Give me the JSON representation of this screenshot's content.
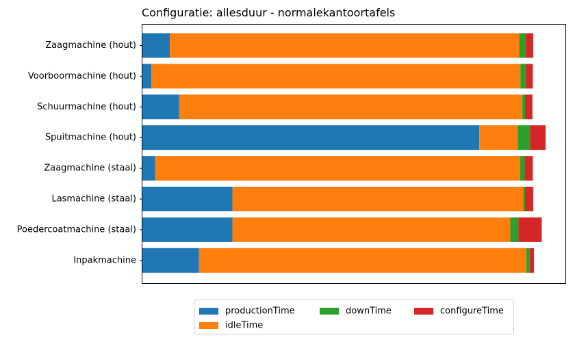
{
  "chart_data": {
    "type": "bar",
    "orientation": "horizontal",
    "stacked": true,
    "title": "Configuratie: allesduur - normalekantoortafels",
    "xlabel": "",
    "ylabel": "",
    "xlim": [
      0,
      1.09
    ],
    "x_tick_labels_shown": false,
    "grid": false,
    "legend_position": "bottom-center",
    "categories": [
      "Zaagmachine (hout)",
      "Voorboormachine (hout)",
      "Schuurmachine (hout)",
      "Spuitmachine (hout)",
      "Zaagmachine (staal)",
      "Lasmachine (staal)",
      "Poedercoatmachine (staal)",
      "Inpakmachine"
    ],
    "series": [
      {
        "name": "productionTime",
        "color": "#1f77b4",
        "values": [
          0.071,
          0.023,
          0.095,
          0.868,
          0.033,
          0.232,
          0.232,
          0.146
        ]
      },
      {
        "name": "idleTime",
        "color": "#ff7f0e",
        "values": [
          0.9,
          0.951,
          0.884,
          0.099,
          0.94,
          0.749,
          0.716,
          0.843
        ]
      },
      {
        "name": "downTime",
        "color": "#2ca02c",
        "values": [
          0.017,
          0.014,
          0.007,
          0.032,
          0.012,
          0.005,
          0.021,
          0.009
        ]
      },
      {
        "name": "configureTime",
        "color": "#d62728",
        "values": [
          0.019,
          0.018,
          0.019,
          0.04,
          0.021,
          0.021,
          0.06,
          0.011
        ]
      }
    ]
  }
}
